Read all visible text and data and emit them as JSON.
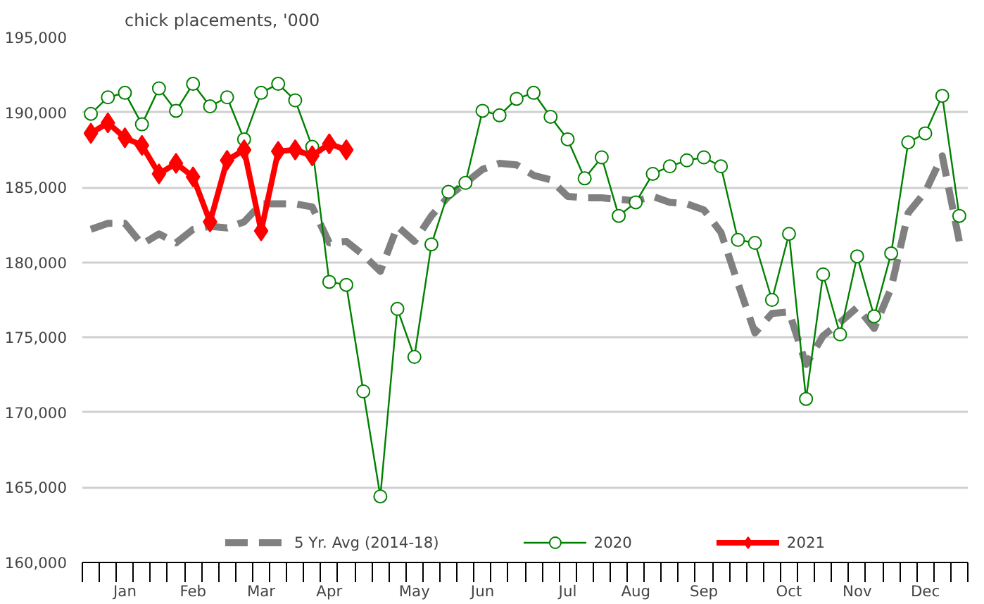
{
  "chart_data": {
    "type": "line",
    "title": "chick placements, '000",
    "categories": [
      null,
      null,
      "Jan",
      null,
      null,
      null,
      "Feb",
      null,
      null,
      null,
      "Mar",
      null,
      null,
      null,
      "Apr",
      null,
      null,
      null,
      null,
      "May",
      null,
      null,
      null,
      "Jun",
      null,
      null,
      null,
      null,
      "Jul",
      null,
      null,
      null,
      "Aug",
      null,
      null,
      null,
      "Sep",
      null,
      null,
      null,
      null,
      "Oct",
      null,
      null,
      null,
      "Nov",
      null,
      null,
      null,
      "Dec",
      null,
      null
    ],
    "ylim": [
      160000,
      195000
    ],
    "yticks": [
      {
        "value": 160000,
        "label": "160,000"
      },
      {
        "value": 165000,
        "label": "165,000"
      },
      {
        "value": 170000,
        "label": "170,000"
      },
      {
        "value": 175000,
        "label": "175,000"
      },
      {
        "value": 180000,
        "label": "180,000"
      },
      {
        "value": 185000,
        "label": "185,000"
      },
      {
        "value": 190000,
        "label": "190,000"
      },
      {
        "value": 195000,
        "label": "195,000"
      }
    ],
    "grid": "y",
    "legend": "bottom",
    "series": [
      {
        "name": "5 Yr. Avg (2014-18)",
        "color": "#808080",
        "line_style": "dashed",
        "marker": "none",
        "values": [
          182200,
          182600,
          182600,
          181200,
          181900,
          181300,
          182200,
          182400,
          182300,
          182700,
          183900,
          183900,
          183900,
          183700,
          181300,
          181400,
          180500,
          179400,
          182400,
          181400,
          183100,
          184400,
          185300,
          186200,
          186600,
          186500,
          185800,
          185500,
          184400,
          184300,
          184300,
          184200,
          184100,
          184400,
          184000,
          183900,
          183500,
          182000,
          178600,
          175300,
          176600,
          176700,
          173200,
          175100,
          176000,
          177000,
          175600,
          178300,
          183300,
          184700,
          187100,
          181400
        ]
      },
      {
        "name": "2020",
        "color": "#008000",
        "line_style": "solid",
        "marker": "circle",
        "values": [
          189900,
          191000,
          191300,
          189200,
          191600,
          190100,
          191900,
          190400,
          191000,
          188200,
          191300,
          191900,
          190800,
          187700,
          178700,
          178500,
          171400,
          164400,
          176900,
          173700,
          181200,
          184700,
          185300,
          190100,
          189800,
          190900,
          191300,
          189700,
          188200,
          185600,
          187000,
          183100,
          184000,
          185900,
          186400,
          186800,
          187000,
          186400,
          181500,
          181300,
          177500,
          181900,
          170900,
          179200,
          175200,
          180400,
          176400,
          180600,
          188000,
          188600,
          191100,
          183100
        ]
      },
      {
        "name": "2021",
        "color": "#ff0000",
        "line_style": "solid",
        "marker": "diamond",
        "values": [
          188600,
          189300,
          188300,
          187800,
          185900,
          186600,
          185700,
          182700,
          186800,
          187500,
          182100,
          187400,
          187500,
          187100,
          187900,
          187500,
          null,
          null,
          null,
          null,
          null,
          null,
          null,
          null,
          null,
          null,
          null,
          null,
          null,
          null,
          null,
          null,
          null,
          null,
          null,
          null,
          null,
          null,
          null,
          null,
          null,
          null,
          null,
          null,
          null,
          null,
          null,
          null,
          null,
          null,
          null,
          null
        ]
      }
    ]
  }
}
